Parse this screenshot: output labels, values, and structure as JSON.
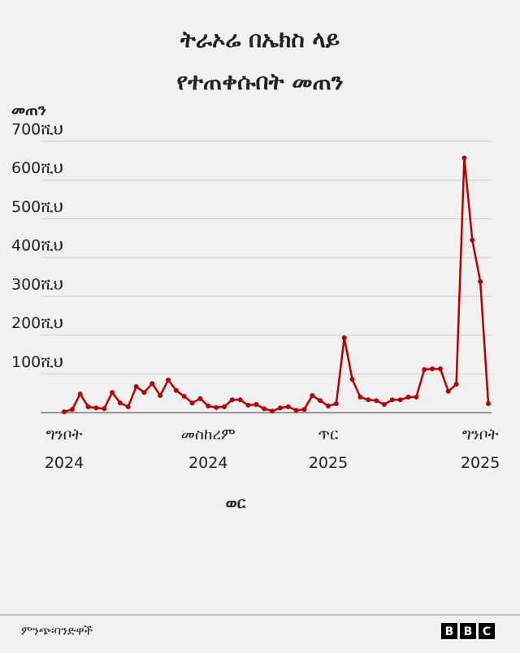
{
  "chart_data": {
    "type": "line",
    "title": [
      "ትራኦሬ በኤክስ ላይ",
      "የተጠቀሱበት መጠን"
    ],
    "y_label": "መጠን",
    "x_label": "ወር",
    "categories": [
      "ግንቦት 2024",
      null,
      null,
      null,
      null,
      null,
      null,
      null,
      null,
      null,
      null,
      null,
      null,
      null,
      null,
      null,
      null,
      null,
      "መስከረም 2024",
      null,
      null,
      null,
      null,
      null,
      null,
      null,
      null,
      null,
      null,
      null,
      null,
      null,
      null,
      "ጥር 2025",
      null,
      null,
      null,
      null,
      null,
      null,
      null,
      null,
      null,
      null,
      null,
      null,
      null,
      null,
      null,
      null,
      null,
      null,
      "ግንቦት 2025",
      null
    ],
    "values": [
      2000,
      8000,
      48000,
      15000,
      12000,
      10000,
      52000,
      25000,
      15000,
      67000,
      52000,
      75000,
      44000,
      84000,
      57000,
      42000,
      25000,
      36000,
      17000,
      13000,
      15000,
      33000,
      33000,
      19000,
      21000,
      10000,
      4000,
      12000,
      15000,
      6000,
      8000,
      44000,
      31000,
      17000,
      23000,
      193000,
      86000,
      40000,
      33000,
      31000,
      21000,
      33000,
      33000,
      40000,
      40000,
      111000,
      113000,
      113000,
      55000,
      73000,
      657000,
      445000,
      338000,
      23000
    ],
    "color": "#b80000",
    "ylim": [
      0,
      700000
    ],
    "yticks": [
      {
        "value": 100000,
        "label": "100ሺህ"
      },
      {
        "value": 200000,
        "label": "200ሺህ"
      },
      {
        "value": 300000,
        "label": "300ሺህ"
      },
      {
        "value": 400000,
        "label": "400ሺህ"
      },
      {
        "value": 500000,
        "label": "500ሺህ"
      },
      {
        "value": 600000,
        "label": "600ሺህ"
      },
      {
        "value": 700000,
        "label": "700ሺህ"
      }
    ],
    "grid": true
  },
  "footer": {
    "source": "ምንጭ፡ባንድዋች",
    "logo": [
      "B",
      "B",
      "C"
    ]
  }
}
